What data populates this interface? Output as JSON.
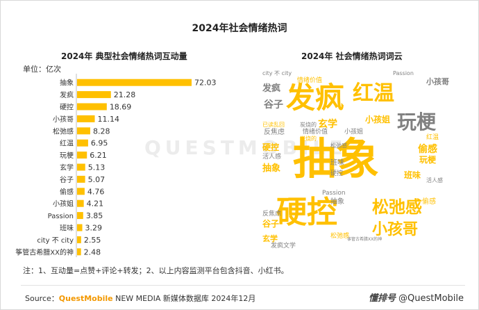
{
  "title": "2024年社会情绪热词",
  "left_subtitle": "2024年 典型社会情绪热词互动量",
  "right_subtitle": "2024年 社会情绪热词词云",
  "unit_label": "单位：亿次",
  "watermark": "QUESTMOBILE",
  "note": "注：1、互动量=点赞+评论+转发；2、以上内容监测平台包含抖音、小红书。",
  "source": {
    "prefix": "Source：",
    "brand": "QuestMobile",
    "rest": " NEW MEDIA 新媒体数据库 2024年12月"
  },
  "credit": {
    "logo": "懂排号",
    "handle": "@QuestMobile"
  },
  "colors": {
    "bar": "#ffc000",
    "cloud_yellow": "#ffc000",
    "cloud_gray": "#808080",
    "cloud_dark": "#595959"
  },
  "chart_data": {
    "type": "bar",
    "orientation": "horizontal",
    "categories": [
      "抽象",
      "发疯",
      "硬控",
      "小孩哥",
      "松弛感",
      "红温",
      "玩梗",
      "玄学",
      "谷子",
      "偷感",
      "小孩姐",
      "Passion",
      "班味",
      "city 不 city",
      "筝管古希腊XX的神"
    ],
    "values": [
      72.03,
      21.28,
      18.69,
      11.14,
      8.28,
      6.95,
      6.21,
      5.13,
      5.07,
      4.76,
      4.21,
      3.85,
      3.29,
      2.55,
      2.48
    ],
    "xlim": [
      0,
      80
    ],
    "grid": false,
    "legend": "none"
  },
  "wordcloud": [
    {
      "text": "抽象",
      "color": "yellow",
      "size": 62
    },
    {
      "text": "硬控",
      "color": "yellow",
      "size": 44
    },
    {
      "text": "发疯",
      "color": "yellow",
      "size": 42
    },
    {
      "text": "红温",
      "color": "yellow",
      "size": 30
    },
    {
      "text": "玩梗",
      "color": "gray",
      "size": 28
    },
    {
      "text": "松弛感",
      "color": "yellow",
      "size": 24
    },
    {
      "text": "小孩哥",
      "color": "yellow",
      "size": 22
    },
    {
      "text": "玄学",
      "color": "yellow",
      "size": 14
    },
    {
      "text": "谷子",
      "color": "gray",
      "size": 14
    },
    {
      "text": "发疯",
      "color": "gray",
      "size": 13
    },
    {
      "text": "偷感",
      "color": "yellow",
      "size": 14
    },
    {
      "text": "小孩姐",
      "color": "yellow",
      "size": 12
    },
    {
      "text": "玩梗",
      "color": "yellow",
      "size": 12
    },
    {
      "text": "班味",
      "color": "yellow",
      "size": 12
    },
    {
      "text": "抽象",
      "color": "yellow",
      "size": 13
    },
    {
      "text": "硬控",
      "color": "yellow",
      "size": 12
    },
    {
      "text": "小孩哥",
      "color": "gray",
      "size": 11
    },
    {
      "text": "情绪价值",
      "color": "yellow",
      "size": 9
    },
    {
      "text": "情绪价值",
      "color": "gray",
      "size": 9
    },
    {
      "text": "city 不 city",
      "color": "gray",
      "size": 8
    },
    {
      "text": "Passion",
      "color": "gray",
      "size": 8
    },
    {
      "text": "Passion",
      "color": "gray",
      "size": 9
    },
    {
      "text": "反焦虑",
      "color": "gray",
      "size": 10
    },
    {
      "text": "反焦虑",
      "color": "gray",
      "size": 9
    },
    {
      "text": "活人感",
      "color": "gray",
      "size": 9
    },
    {
      "text": "活人感",
      "color": "gray",
      "size": 8
    },
    {
      "text": "班味",
      "color": "gray",
      "size": 10
    },
    {
      "text": "谷子",
      "color": "yellow",
      "size": 12
    },
    {
      "text": "玄学",
      "color": "yellow",
      "size": 11
    },
    {
      "text": "发疯文学",
      "color": "gray",
      "size": 9
    },
    {
      "text": "已读乱回",
      "color": "yellow",
      "size": 8
    },
    {
      "text": "炭烧的",
      "color": "gray",
      "size": 8
    },
    {
      "text": "炭烧的",
      "color": "yellow",
      "size": 8
    },
    {
      "text": "筝管古希腊XX的神",
      "color": "gray",
      "size": 6
    },
    {
      "text": "偷感",
      "color": "yellow",
      "size": 10
    },
    {
      "text": "松弛感",
      "color": "gray",
      "size": 8
    },
    {
      "text": "红温",
      "color": "yellow",
      "size": 9
    },
    {
      "text": "抽象",
      "color": "gray",
      "size": 10
    },
    {
      "text": "硬控",
      "color": "gray",
      "size": 9
    },
    {
      "text": "小孩姐",
      "color": "gray",
      "size": 9
    },
    {
      "text": "松弛感",
      "color": "yellow",
      "size": 9
    }
  ]
}
